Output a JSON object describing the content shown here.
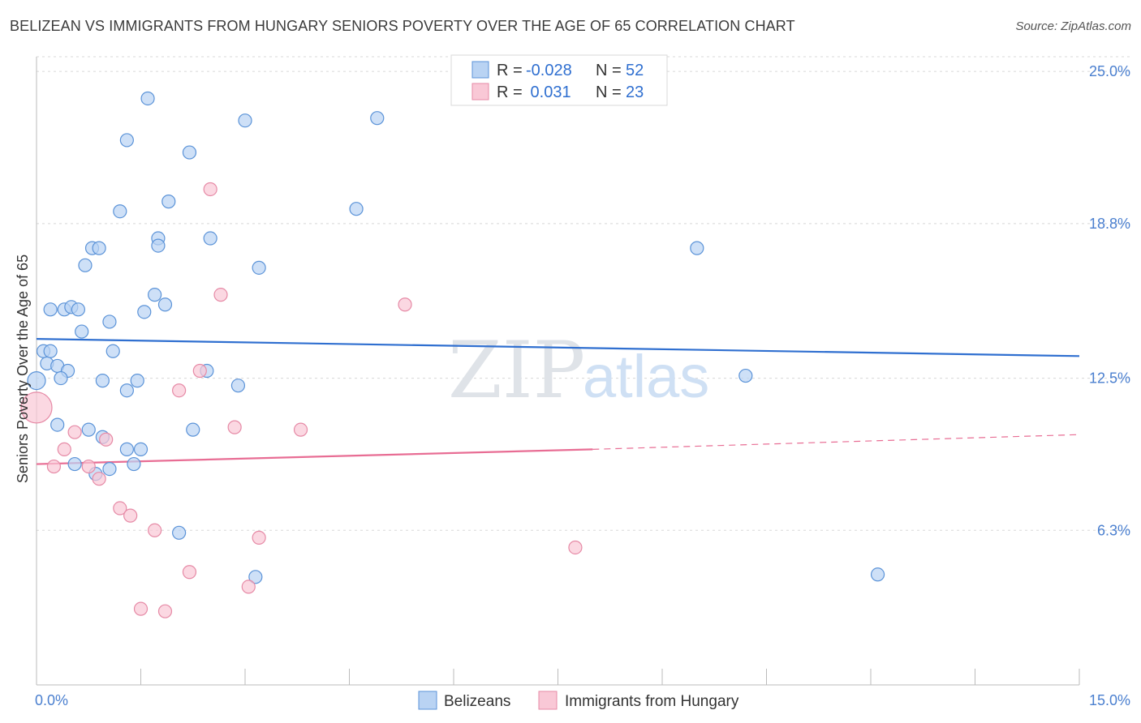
{
  "title": "BELIZEAN VS IMMIGRANTS FROM HUNGARY SENIORS POVERTY OVER THE AGE OF 65 CORRELATION CHART",
  "source": "Source: ZipAtlas.com",
  "watermark": {
    "zip": "ZIP",
    "atlas": "atlas"
  },
  "colors": {
    "blue_fill": "#b9d3f3",
    "blue_stroke": "#5b93d8",
    "blue_line": "#2f6fd0",
    "pink_fill": "#f9c8d6",
    "pink_stroke": "#e68aa6",
    "pink_line": "#e86d94",
    "grid": "#d8d8d8",
    "axis_text": "#4a7fcf"
  },
  "stats": [
    {
      "r_label": "R = ",
      "r_value": "-0.028",
      "n_label": "N = ",
      "n_value": "52"
    },
    {
      "r_label": "R = ",
      "r_value": " 0.031",
      "n_label": "N = ",
      "n_value": "23"
    }
  ],
  "chart_data": {
    "type": "scatter",
    "title": "BELIZEAN VS IMMIGRANTS FROM HUNGARY SENIORS POVERTY OVER THE AGE OF 65 CORRELATION CHART",
    "xlabel": "",
    "ylabel": "Seniors Poverty Over the Age of 65",
    "xlim": [
      0,
      15
    ],
    "ylim": [
      0,
      25.6
    ],
    "x_tick_labels": [
      "0.0%",
      "15.0%"
    ],
    "y_ticks": [
      6.3,
      12.5,
      18.8,
      25.0
    ],
    "y_tick_labels": [
      "6.3%",
      "12.5%",
      "18.8%",
      "25.0%"
    ],
    "legend": [
      "Belizeans",
      "Immigrants from Hungary"
    ],
    "series": [
      {
        "name": "Belizeans",
        "r": -0.028,
        "n": 52,
        "trend": {
          "x": [
            0,
            15
          ],
          "y": [
            14.1,
            13.4
          ]
        },
        "points": [
          [
            1.6,
            23.9
          ],
          [
            3.0,
            23.0
          ],
          [
            4.9,
            23.1
          ],
          [
            1.3,
            22.2
          ],
          [
            2.2,
            21.7
          ],
          [
            1.9,
            19.7
          ],
          [
            1.2,
            19.3
          ],
          [
            4.6,
            19.4
          ],
          [
            1.75,
            18.2
          ],
          [
            2.5,
            18.2
          ],
          [
            0.8,
            17.8
          ],
          [
            0.9,
            17.8
          ],
          [
            1.75,
            17.9
          ],
          [
            0.7,
            17.1
          ],
          [
            3.2,
            17.0
          ],
          [
            1.7,
            15.9
          ],
          [
            1.85,
            15.5
          ],
          [
            0.2,
            15.3
          ],
          [
            0.4,
            15.3
          ],
          [
            0.5,
            15.4
          ],
          [
            0.6,
            15.3
          ],
          [
            1.55,
            15.2
          ],
          [
            1.05,
            14.8
          ],
          [
            0.65,
            14.4
          ],
          [
            9.5,
            17.8
          ],
          [
            0.1,
            13.6
          ],
          [
            0.2,
            13.6
          ],
          [
            1.1,
            13.6
          ],
          [
            0.15,
            13.1
          ],
          [
            0.3,
            13.0
          ],
          [
            0.45,
            12.8
          ],
          [
            2.45,
            12.8
          ],
          [
            0.35,
            12.5
          ],
          [
            0.95,
            12.4
          ],
          [
            1.45,
            12.4
          ],
          [
            2.9,
            12.2
          ],
          [
            1.3,
            12.0
          ],
          [
            10.2,
            12.6
          ],
          [
            0.0,
            12.4
          ],
          [
            0.3,
            10.6
          ],
          [
            0.75,
            10.4
          ],
          [
            2.25,
            10.4
          ],
          [
            0.95,
            10.1
          ],
          [
            1.3,
            9.6
          ],
          [
            1.5,
            9.6
          ],
          [
            0.55,
            9.0
          ],
          [
            1.4,
            9.0
          ],
          [
            1.05,
            8.8
          ],
          [
            0.85,
            8.6
          ],
          [
            2.05,
            6.2
          ],
          [
            3.15,
            4.4
          ],
          [
            12.1,
            4.5
          ]
        ]
      },
      {
        "name": "Immigrants from Hungary",
        "r": 0.031,
        "n": 23,
        "trend": {
          "x": [
            0,
            8.0
          ],
          "y": [
            9.0,
            9.6
          ]
        },
        "trend_dashed": {
          "x": [
            8.0,
            15
          ],
          "y": [
            9.6,
            10.2
          ]
        },
        "points": [
          [
            2.5,
            20.2
          ],
          [
            2.65,
            15.9
          ],
          [
            5.3,
            15.5
          ],
          [
            2.35,
            12.8
          ],
          [
            2.05,
            12.0
          ],
          [
            0.0,
            11.3
          ],
          [
            2.85,
            10.5
          ],
          [
            3.8,
            10.4
          ],
          [
            0.55,
            10.3
          ],
          [
            1.0,
            10.0
          ],
          [
            0.4,
            9.6
          ],
          [
            0.25,
            8.9
          ],
          [
            0.75,
            8.9
          ],
          [
            0.9,
            8.4
          ],
          [
            1.2,
            7.2
          ],
          [
            1.35,
            6.9
          ],
          [
            1.7,
            6.3
          ],
          [
            3.2,
            6.0
          ],
          [
            7.75,
            5.6
          ],
          [
            2.2,
            4.6
          ],
          [
            3.05,
            4.0
          ],
          [
            1.5,
            3.1
          ],
          [
            1.85,
            3.0
          ]
        ]
      }
    ]
  }
}
